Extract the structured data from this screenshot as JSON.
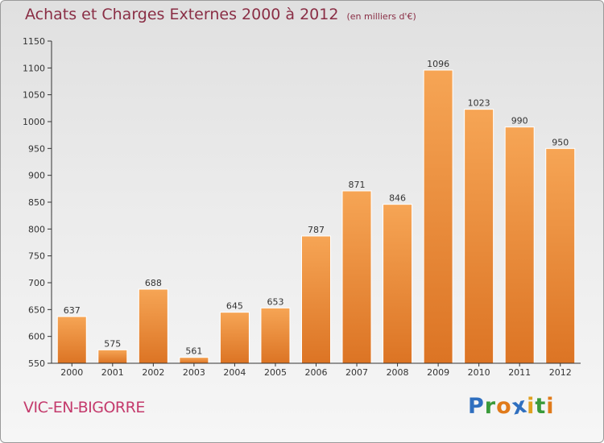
{
  "title": "Achats et Charges Externes 2000 à 2012",
  "subtitle": "(en milliers d'€)",
  "commune": "VIC-EN-BIGORRE",
  "logo": {
    "text": "Proxiti",
    "letters": [
      {
        "ch": "P",
        "color": "#2f6fbf"
      },
      {
        "ch": "r",
        "color": "#3a9a3a"
      },
      {
        "ch": "o",
        "color": "#e07a1a"
      },
      {
        "ch": "x",
        "color": "#2f6fbf"
      },
      {
        "ch": "i",
        "color": "#e0a020"
      },
      {
        "ch": "t",
        "color": "#3a9a3a"
      },
      {
        "ch": "i",
        "color": "#e07a1a"
      }
    ]
  },
  "colors": {
    "bar_top": "#f6a555",
    "bar_bottom": "#dc7424",
    "bar_stroke": "#ffffff",
    "axis": "#333333",
    "text": "#333333",
    "title": "#8a2e45",
    "commune": "#c43a6c"
  },
  "chart_data": {
    "type": "bar",
    "categories": [
      "2000",
      "2001",
      "2002",
      "2003",
      "2004",
      "2005",
      "2006",
      "2007",
      "2008",
      "2009",
      "2010",
      "2011",
      "2012"
    ],
    "values": [
      637,
      575,
      688,
      561,
      645,
      653,
      787,
      871,
      846,
      1096,
      1023,
      990,
      950
    ],
    "data_labels": [
      "637",
      "575",
      "688",
      "561",
      "645",
      "653",
      "787",
      "871",
      "846",
      "1096",
      "1023",
      "990",
      "950"
    ],
    "y_ticks": [
      550,
      600,
      650,
      700,
      750,
      800,
      850,
      900,
      950,
      1000,
      1050,
      1100,
      1150
    ],
    "ylim": [
      550,
      1150
    ],
    "title": "Achats et Charges Externes 2000 à 2012",
    "xlabel": "",
    "ylabel": "",
    "grid": false
  }
}
